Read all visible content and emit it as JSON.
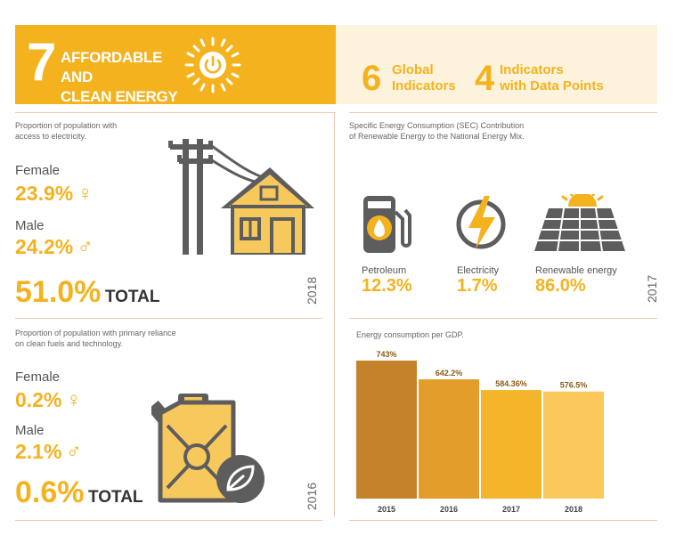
{
  "header": {
    "goal_number": "7",
    "goal_title_line1": "AFFORDABLE AND",
    "goal_title_line2": "CLEAN ENERGY",
    "global_count": "6",
    "global_label_line1": "Global",
    "global_label_line2": "Indicators",
    "data_count": "4",
    "data_label_line1": "Indicators",
    "data_label_line2": "with Data Points"
  },
  "electricity_access": {
    "desc_line1": "Proportion of population with",
    "desc_line2": "access to electricity.",
    "female_label": "Female",
    "female_value": "23.9%",
    "female_symbol": "♀",
    "male_label": "Male",
    "male_value": "24.2%",
    "male_symbol": "♂",
    "total_value": "51.0%",
    "total_label": "TOTAL",
    "year": "2018"
  },
  "clean_fuels": {
    "desc_line1": "Proportion of population with primary reliance",
    "desc_line2": "on clean fuels and technology.",
    "female_label": "Female",
    "female_value": "0.2%",
    "female_symbol": "♀",
    "male_label": "Male",
    "male_value": "2.1%",
    "male_symbol": "♂",
    "total_value": "0.6%",
    "total_label": "TOTAL",
    "year": "2016"
  },
  "energy_mix": {
    "desc_line1": "Specific Energy Consumption (SEC) Contribution",
    "desc_line2": "of Renewable Energy to the National Energy Mix.",
    "sources": [
      {
        "label": "Petroleum",
        "value": "12.3%",
        "icon": "fuel-pump-icon"
      },
      {
        "label": "Electricity",
        "value": "1.7%",
        "icon": "lightning-icon"
      },
      {
        "label": "Renewable energy",
        "value": "86.0%",
        "icon": "solar-panel-icon"
      }
    ],
    "year": "2017"
  },
  "colors": {
    "accent": "#f4b21e",
    "header_bg_light": "#fdf3dd",
    "bar_2015": "#c4832a",
    "bar_2016": "#e39d2a",
    "bar_2017": "#f4b52b",
    "bar_2018": "#fbc95b"
  },
  "chart_data": {
    "type": "bar",
    "title": "Energy consumption per GDP.",
    "categories": [
      "2015",
      "2016",
      "2017",
      "2018"
    ],
    "values": [
      743,
      642.2,
      584.36,
      576.5
    ],
    "value_labels": [
      "743%",
      "642.2%",
      "584.36%",
      "576.5%"
    ],
    "ylim": [
      0,
      900
    ]
  }
}
